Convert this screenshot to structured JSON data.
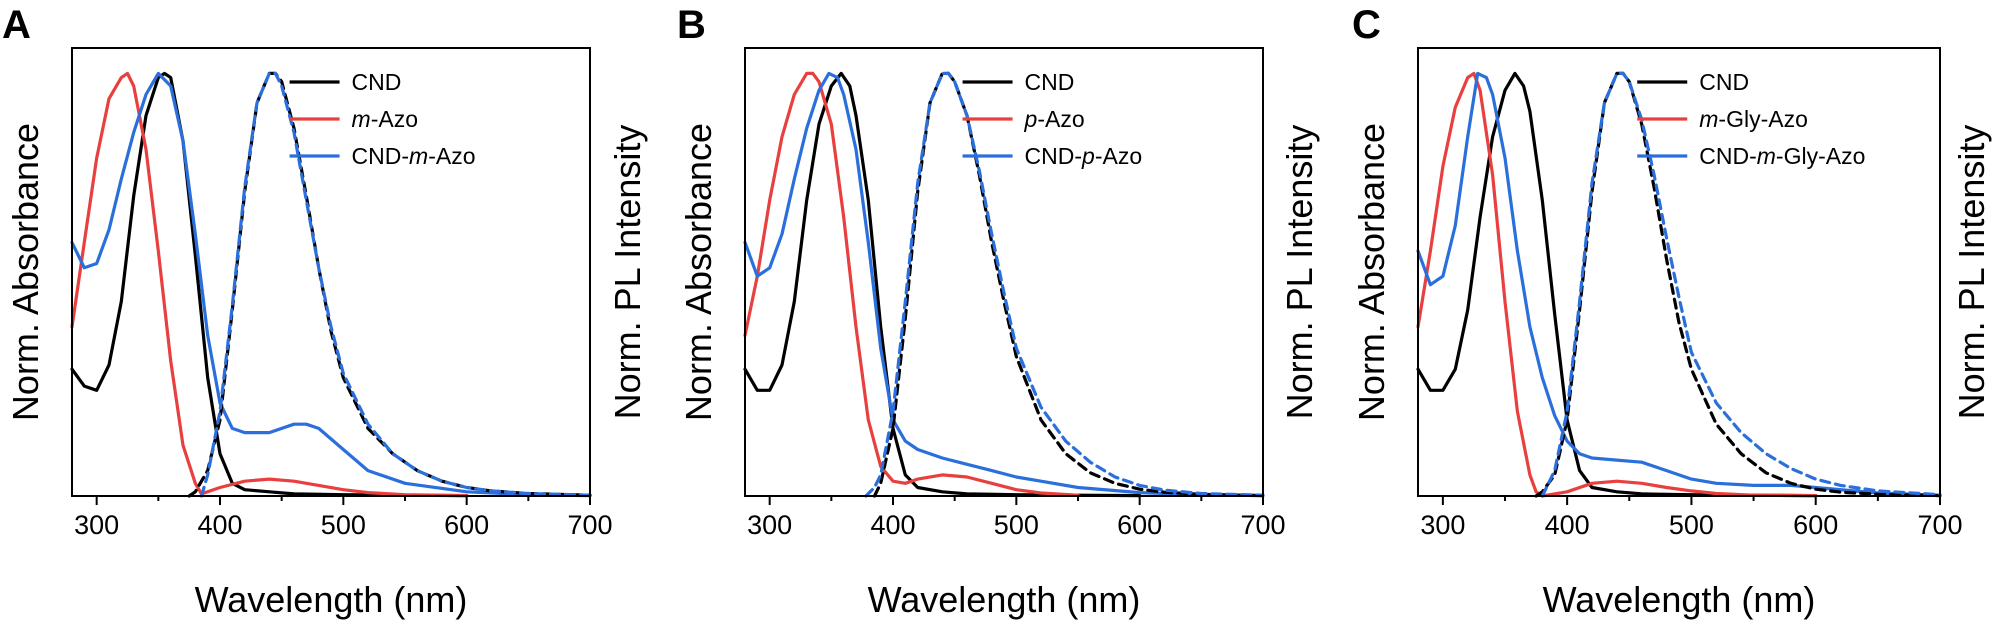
{
  "chart_data": [
    {
      "panel": "A",
      "type": "line",
      "xlabel": "Wavelength (nm)",
      "ylabel_left": "Norm. Absorbance",
      "ylabel_right": "Norm. PL Intensity",
      "xlim": [
        280,
        700
      ],
      "ylim": [
        0,
        1.06
      ],
      "xticks": [
        300,
        400,
        500,
        600,
        700
      ],
      "legend": {
        "position": "top-right",
        "entries": [
          {
            "parts": [
              {
                "t": "CND",
                "i": false
              }
            ],
            "color": "#000000"
          },
          {
            "parts": [
              {
                "t": "m",
                "i": true
              },
              {
                "t": "-Azo",
                "i": false
              }
            ],
            "color": "#e8403f"
          },
          {
            "parts": [
              {
                "t": "CND-",
                "i": false
              },
              {
                "t": "m",
                "i": true
              },
              {
                "t": "-Azo",
                "i": false
              }
            ],
            "color": "#2a6fdb"
          }
        ]
      },
      "series": [
        {
          "color": "#000000",
          "dash": false,
          "x": [
            280,
            290,
            300,
            310,
            320,
            330,
            340,
            350,
            355,
            360,
            370,
            380,
            390,
            400,
            410,
            420,
            440,
            460,
            500,
            550,
            600
          ],
          "y": [
            0.3,
            0.26,
            0.25,
            0.31,
            0.46,
            0.71,
            0.9,
            0.99,
            1.0,
            0.99,
            0.84,
            0.57,
            0.28,
            0.1,
            0.03,
            0.015,
            0.01,
            0.005,
            0.003,
            0.002,
            0.001
          ]
        },
        {
          "color": "#e8403f",
          "dash": false,
          "x": [
            280,
            290,
            300,
            310,
            320,
            325,
            330,
            340,
            350,
            360,
            370,
            380,
            385,
            400,
            420,
            440,
            460,
            480,
            500,
            520,
            550,
            600
          ],
          "y": [
            0.4,
            0.6,
            0.8,
            0.94,
            0.99,
            1.0,
            0.97,
            0.82,
            0.58,
            0.32,
            0.12,
            0.03,
            0.005,
            0.02,
            0.035,
            0.04,
            0.035,
            0.025,
            0.015,
            0.008,
            0.003,
            0.001
          ]
        },
        {
          "color": "#2a6fdb",
          "dash": false,
          "x": [
            280,
            290,
            300,
            310,
            320,
            330,
            340,
            350,
            360,
            370,
            380,
            390,
            400,
            410,
            420,
            440,
            460,
            470,
            480,
            500,
            520,
            550,
            600,
            650,
            700
          ],
          "y": [
            0.6,
            0.54,
            0.55,
            0.63,
            0.75,
            0.86,
            0.95,
            1.0,
            0.97,
            0.84,
            0.62,
            0.38,
            0.22,
            0.16,
            0.15,
            0.15,
            0.17,
            0.17,
            0.16,
            0.11,
            0.06,
            0.03,
            0.01,
            0.003,
            0.001
          ]
        },
        {
          "color": "#000000",
          "dash": true,
          "x": [
            375,
            380,
            390,
            400,
            410,
            420,
            430,
            440,
            445,
            450,
            460,
            470,
            480,
            490,
            500,
            520,
            540,
            560,
            580,
            600,
            620,
            650,
            700
          ],
          "y": [
            0.0,
            0.01,
            0.06,
            0.18,
            0.44,
            0.72,
            0.93,
            1.0,
            1.0,
            0.98,
            0.87,
            0.71,
            0.54,
            0.39,
            0.28,
            0.16,
            0.1,
            0.06,
            0.035,
            0.02,
            0.012,
            0.006,
            0.002
          ]
        },
        {
          "color": "#2a6fdb",
          "dash": true,
          "x": [
            385,
            390,
            400,
            410,
            420,
            430,
            440,
            445,
            450,
            460,
            470,
            480,
            490,
            500,
            520,
            540,
            560,
            580,
            600,
            620,
            650,
            700
          ],
          "y": [
            0.0,
            0.05,
            0.2,
            0.45,
            0.73,
            0.93,
            1.0,
            1.0,
            0.97,
            0.86,
            0.7,
            0.54,
            0.4,
            0.29,
            0.17,
            0.1,
            0.06,
            0.035,
            0.02,
            0.012,
            0.006,
            0.002
          ]
        }
      ]
    },
    {
      "panel": "B",
      "type": "line",
      "xlabel": "Wavelength (nm)",
      "ylabel_left": "Norm. Absorbance",
      "ylabel_right": "Norm. PL Intensity",
      "xlim": [
        280,
        700
      ],
      "ylim": [
        0,
        1.06
      ],
      "xticks": [
        300,
        400,
        500,
        600,
        700
      ],
      "legend": {
        "position": "top-right",
        "entries": [
          {
            "parts": [
              {
                "t": "CND",
                "i": false
              }
            ],
            "color": "#000000"
          },
          {
            "parts": [
              {
                "t": "p",
                "i": true
              },
              {
                "t": "-Azo",
                "i": false
              }
            ],
            "color": "#e8403f"
          },
          {
            "parts": [
              {
                "t": "CND-",
                "i": false
              },
              {
                "t": "p",
                "i": true
              },
              {
                "t": "-Azo",
                "i": false
              }
            ],
            "color": "#2a6fdb"
          }
        ]
      },
      "series": [
        {
          "color": "#000000",
          "dash": false,
          "x": [
            280,
            290,
            300,
            310,
            320,
            330,
            340,
            350,
            358,
            365,
            370,
            380,
            390,
            400,
            410,
            420,
            440,
            460,
            500,
            550,
            600
          ],
          "y": [
            0.3,
            0.25,
            0.25,
            0.31,
            0.46,
            0.7,
            0.88,
            0.97,
            1.0,
            0.97,
            0.9,
            0.7,
            0.4,
            0.16,
            0.05,
            0.02,
            0.01,
            0.005,
            0.003,
            0.002,
            0.001
          ]
        },
        {
          "color": "#e8403f",
          "dash": false,
          "x": [
            280,
            290,
            300,
            310,
            320,
            330,
            335,
            340,
            350,
            360,
            370,
            380,
            390,
            400,
            410,
            420,
            440,
            460,
            480,
            500,
            520,
            550
          ],
          "y": [
            0.38,
            0.52,
            0.7,
            0.85,
            0.95,
            1.0,
            1.0,
            0.98,
            0.88,
            0.66,
            0.4,
            0.18,
            0.07,
            0.035,
            0.03,
            0.04,
            0.05,
            0.045,
            0.03,
            0.015,
            0.007,
            0.002
          ]
        },
        {
          "color": "#2a6fdb",
          "dash": false,
          "x": [
            280,
            290,
            300,
            310,
            320,
            330,
            340,
            348,
            355,
            360,
            370,
            380,
            390,
            400,
            410,
            420,
            440,
            460,
            480,
            500,
            520,
            550,
            600,
            650,
            700
          ],
          "y": [
            0.6,
            0.52,
            0.54,
            0.62,
            0.75,
            0.87,
            0.96,
            1.0,
            0.99,
            0.95,
            0.82,
            0.6,
            0.35,
            0.18,
            0.13,
            0.11,
            0.09,
            0.075,
            0.06,
            0.045,
            0.035,
            0.02,
            0.008,
            0.003,
            0.001
          ]
        },
        {
          "color": "#000000",
          "dash": true,
          "x": [
            385,
            390,
            400,
            410,
            420,
            430,
            440,
            445,
            450,
            460,
            470,
            480,
            490,
            500,
            520,
            540,
            560,
            580,
            600,
            620,
            650,
            700
          ],
          "y": [
            0.0,
            0.03,
            0.16,
            0.42,
            0.72,
            0.93,
            1.0,
            1.0,
            0.98,
            0.9,
            0.76,
            0.6,
            0.46,
            0.33,
            0.18,
            0.1,
            0.055,
            0.03,
            0.016,
            0.009,
            0.004,
            0.001
          ]
        },
        {
          "color": "#2a6fdb",
          "dash": true,
          "x": [
            378,
            385,
            390,
            400,
            410,
            420,
            430,
            440,
            445,
            450,
            460,
            470,
            480,
            490,
            500,
            520,
            540,
            560,
            580,
            600,
            620,
            650,
            700
          ],
          "y": [
            0.0,
            0.02,
            0.05,
            0.2,
            0.46,
            0.74,
            0.93,
            1.0,
            1.0,
            0.98,
            0.9,
            0.77,
            0.62,
            0.48,
            0.35,
            0.21,
            0.13,
            0.08,
            0.045,
            0.025,
            0.014,
            0.006,
            0.002
          ]
        }
      ]
    },
    {
      "panel": "C",
      "type": "line",
      "xlabel": "Wavelength (nm)",
      "ylabel_left": "Norm. Absorbance",
      "ylabel_right": "Norm. PL Intensity",
      "xlim": [
        280,
        700
      ],
      "ylim": [
        0,
        1.06
      ],
      "xticks": [
        300,
        400,
        500,
        600,
        700
      ],
      "legend": {
        "position": "top-right",
        "entries": [
          {
            "parts": [
              {
                "t": "CND",
                "i": false
              }
            ],
            "color": "#000000"
          },
          {
            "parts": [
              {
                "t": "m",
                "i": true
              },
              {
                "t": "-Gly-Azo",
                "i": false
              }
            ],
            "color": "#e8403f"
          },
          {
            "parts": [
              {
                "t": "CND-",
                "i": false
              },
              {
                "t": "m",
                "i": true
              },
              {
                "t": "-Gly-Azo",
                "i": false
              }
            ],
            "color": "#2a6fdb"
          }
        ]
      },
      "series": [
        {
          "color": "#000000",
          "dash": false,
          "x": [
            280,
            290,
            300,
            310,
            320,
            330,
            340,
            350,
            358,
            365,
            370,
            380,
            390,
            400,
            410,
            420,
            440,
            460,
            500,
            550,
            600
          ],
          "y": [
            0.3,
            0.25,
            0.25,
            0.3,
            0.44,
            0.66,
            0.85,
            0.96,
            1.0,
            0.97,
            0.91,
            0.7,
            0.43,
            0.18,
            0.06,
            0.02,
            0.01,
            0.005,
            0.003,
            0.002,
            0.001
          ]
        },
        {
          "color": "#e8403f",
          "dash": false,
          "x": [
            280,
            290,
            300,
            310,
            320,
            325,
            330,
            340,
            350,
            360,
            370,
            375,
            380,
            400,
            420,
            440,
            460,
            480,
            500,
            520,
            550,
            600
          ],
          "y": [
            0.4,
            0.58,
            0.78,
            0.92,
            0.99,
            1.0,
            0.96,
            0.76,
            0.46,
            0.2,
            0.05,
            0.01,
            0.0,
            0.01,
            0.03,
            0.035,
            0.03,
            0.02,
            0.012,
            0.006,
            0.002,
            0.001
          ]
        },
        {
          "color": "#2a6fdb",
          "dash": false,
          "x": [
            280,
            290,
            300,
            310,
            320,
            328,
            335,
            340,
            350,
            360,
            370,
            380,
            390,
            400,
            410,
            420,
            440,
            460,
            480,
            500,
            520,
            550,
            580,
            600,
            650,
            700
          ],
          "y": [
            0.58,
            0.5,
            0.52,
            0.64,
            0.85,
            1.0,
            0.99,
            0.95,
            0.8,
            0.58,
            0.4,
            0.28,
            0.19,
            0.13,
            0.1,
            0.09,
            0.085,
            0.08,
            0.06,
            0.04,
            0.03,
            0.025,
            0.025,
            0.02,
            0.007,
            0.002
          ]
        },
        {
          "color": "#000000",
          "dash": true,
          "x": [
            375,
            380,
            390,
            400,
            410,
            420,
            430,
            440,
            445,
            450,
            460,
            470,
            480,
            490,
            500,
            520,
            540,
            560,
            580,
            600,
            620,
            650,
            700
          ],
          "y": [
            0.0,
            0.01,
            0.05,
            0.18,
            0.44,
            0.72,
            0.93,
            1.0,
            1.0,
            0.98,
            0.88,
            0.73,
            0.56,
            0.41,
            0.3,
            0.17,
            0.1,
            0.055,
            0.03,
            0.016,
            0.009,
            0.004,
            0.001
          ]
        },
        {
          "color": "#2a6fdb",
          "dash": true,
          "x": [
            380,
            390,
            400,
            410,
            420,
            430,
            440,
            445,
            450,
            460,
            470,
            480,
            490,
            500,
            520,
            540,
            560,
            580,
            600,
            620,
            650,
            700
          ],
          "y": [
            0.0,
            0.06,
            0.2,
            0.46,
            0.74,
            0.93,
            1.0,
            1.0,
            0.98,
            0.89,
            0.76,
            0.61,
            0.47,
            0.34,
            0.22,
            0.15,
            0.1,
            0.065,
            0.04,
            0.025,
            0.012,
            0.003
          ]
        }
      ]
    }
  ]
}
